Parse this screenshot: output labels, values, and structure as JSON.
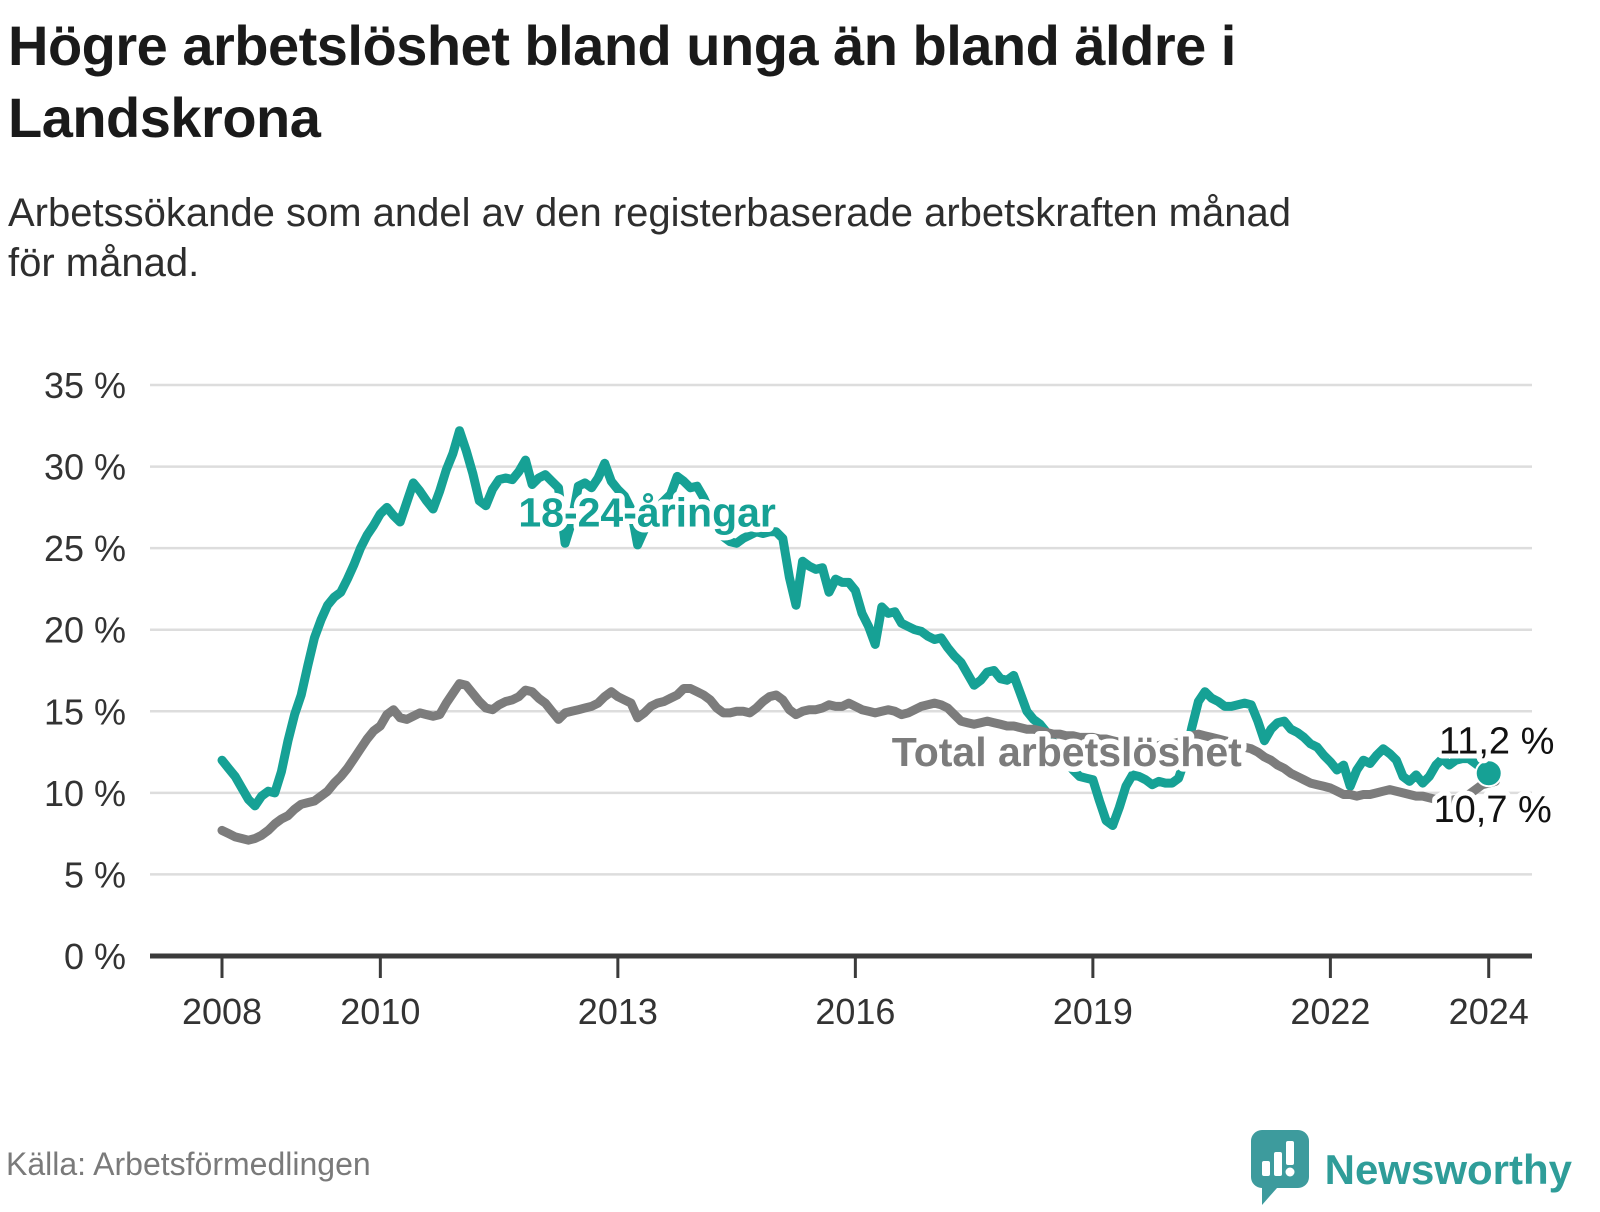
{
  "header": {
    "title": "Högre arbetslöshet bland unga än bland äldre i Landskrona",
    "title_lines": [
      "Högre arbetslöshet bland unga än bland äldre i",
      "Landskrona"
    ],
    "subtitle_lines": [
      "Arbetssökande som andel av den registerbaserade arbetskraften månad",
      "för månad."
    ]
  },
  "footer": {
    "source": "Källa: Arbetsförmedlingen",
    "brand_name": "Newsworthy"
  },
  "colors": {
    "young": "#16A195",
    "total": "#7C7C7C",
    "grid": "#DDDDDD",
    "axis": "#3B3B3B",
    "brand": "#3D9B9D",
    "end_label_text": "#111111"
  },
  "chart_data": {
    "type": "line",
    "title": "Högre arbetslöshet bland unga än bland äldre i Landskrona",
    "xlabel": "",
    "ylabel": "",
    "x_start_year": 2008,
    "x_step_months": 1,
    "xticks": [
      2008,
      2010,
      2013,
      2016,
      2019,
      2022,
      2024
    ],
    "yticks": [
      0,
      5,
      10,
      15,
      20,
      25,
      30,
      35
    ],
    "ytick_suffix": " %",
    "ylim": [
      0,
      35
    ],
    "grid": true,
    "legend": "inline-labels",
    "series": [
      {
        "name": "18-24-åringar",
        "color": "#16A195",
        "end_label": "11,2 %",
        "end_value": 11.2,
        "end_dot": true,
        "label_anchor": {
          "year": 2013.37,
          "value": 27.2
        },
        "end_label_anchor": {
          "year": 2024.1,
          "value": 13.2
        },
        "values": [
          12.0,
          11.5,
          11.0,
          10.3,
          9.6,
          9.2,
          9.8,
          10.1,
          10.0,
          11.3,
          13.2,
          14.8,
          16.0,
          17.8,
          19.5,
          20.6,
          21.5,
          22.0,
          22.3,
          23.1,
          24.0,
          25.0,
          25.8,
          26.4,
          27.1,
          27.5,
          27.0,
          26.6,
          27.8,
          29.0,
          28.5,
          27.9,
          27.4,
          28.5,
          29.8,
          30.8,
          32.2,
          31.0,
          29.6,
          27.9,
          27.6,
          28.6,
          29.2,
          29.3,
          29.2,
          29.7,
          30.4,
          28.9,
          29.3,
          29.5,
          29.1,
          28.7,
          25.3,
          26.6,
          28.8,
          29.0,
          28.7,
          29.3,
          30.2,
          29.1,
          28.6,
          28.2,
          27.4,
          25.2,
          26.1,
          27.0,
          27.5,
          27.9,
          28.3,
          29.4,
          29.1,
          28.7,
          28.8,
          28.1,
          27.2,
          26.3,
          25.7,
          25.4,
          25.3,
          25.6,
          25.8,
          26.0,
          25.9,
          26.0,
          26.0,
          25.6,
          23.2,
          21.5,
          24.2,
          23.9,
          23.7,
          23.8,
          22.3,
          23.1,
          22.9,
          22.9,
          22.4,
          21.0,
          20.2,
          19.1,
          21.4,
          21.0,
          21.1,
          20.4,
          20.2,
          20.0,
          19.9,
          19.6,
          19.4,
          19.5,
          18.9,
          18.4,
          18.0,
          17.3,
          16.6,
          16.9,
          17.4,
          17.5,
          17.0,
          16.9,
          17.2,
          16.1,
          15.0,
          14.5,
          14.2,
          13.7,
          13.1,
          12.5,
          11.9,
          11.4,
          11.0,
          10.9,
          10.8,
          9.5,
          8.3,
          8.0,
          9.1,
          10.4,
          11.1,
          11.0,
          10.8,
          10.5,
          10.7,
          10.6,
          10.6,
          10.9,
          12.1,
          14.0,
          15.6,
          16.2,
          15.8,
          15.6,
          15.3,
          15.3,
          15.4,
          15.5,
          15.4,
          14.4,
          13.2,
          13.9,
          14.3,
          14.4,
          13.9,
          13.7,
          13.4,
          13.0,
          12.8,
          12.3,
          11.9,
          11.4,
          11.7,
          10.4,
          11.4,
          12.0,
          11.8,
          12.3,
          12.7,
          12.4,
          12.0,
          11.0,
          10.7,
          11.1,
          10.6,
          11.0,
          11.7,
          12.1,
          11.7,
          12.0,
          12.1,
          12.1,
          11.8,
          11.5,
          11.2
        ]
      },
      {
        "name": "Total arbetslöshet",
        "color": "#7C7C7C",
        "end_label": "10,7 %",
        "end_value": 10.7,
        "end_dot": false,
        "label_anchor": {
          "year": 2018.67,
          "value": 12.5
        },
        "end_label_anchor": {
          "year": 2024.05,
          "value": 9.0
        },
        "values": [
          7.7,
          7.5,
          7.3,
          7.2,
          7.1,
          7.2,
          7.4,
          7.7,
          8.1,
          8.4,
          8.6,
          9.0,
          9.3,
          9.4,
          9.5,
          9.8,
          10.1,
          10.6,
          11.0,
          11.5,
          12.1,
          12.7,
          13.3,
          13.8,
          14.1,
          14.8,
          15.1,
          14.6,
          14.5,
          14.7,
          14.9,
          14.8,
          14.7,
          14.8,
          15.5,
          16.1,
          16.7,
          16.6,
          16.1,
          15.6,
          15.2,
          15.1,
          15.4,
          15.6,
          15.7,
          15.9,
          16.3,
          16.2,
          15.8,
          15.5,
          15.0,
          14.5,
          14.9,
          15.0,
          15.1,
          15.2,
          15.3,
          15.5,
          15.9,
          16.2,
          15.9,
          15.7,
          15.5,
          14.6,
          14.9,
          15.3,
          15.5,
          15.6,
          15.8,
          16.0,
          16.4,
          16.4,
          16.2,
          16.0,
          15.7,
          15.2,
          14.9,
          14.9,
          15.0,
          15.0,
          14.9,
          15.2,
          15.6,
          15.9,
          16.0,
          15.7,
          15.1,
          14.8,
          15.0,
          15.1,
          15.1,
          15.2,
          15.4,
          15.3,
          15.3,
          15.5,
          15.3,
          15.1,
          15.0,
          14.9,
          15.0,
          15.1,
          15.0,
          14.8,
          14.9,
          15.1,
          15.3,
          15.4,
          15.5,
          15.4,
          15.2,
          14.8,
          14.4,
          14.3,
          14.2,
          14.3,
          14.4,
          14.3,
          14.2,
          14.1,
          14.1,
          14.0,
          13.9,
          13.9,
          13.8,
          13.7,
          13.6,
          13.6,
          13.5,
          13.5,
          13.4,
          13.4,
          13.4,
          13.3,
          13.3,
          13.2,
          13.1,
          13.0,
          12.9,
          12.9,
          12.8,
          12.8,
          12.9,
          13.0,
          13.0,
          13.1,
          13.3,
          13.5,
          13.6,
          13.5,
          13.4,
          13.3,
          13.2,
          13.1,
          13.0,
          12.8,
          12.7,
          12.5,
          12.2,
          12.0,
          11.7,
          11.5,
          11.2,
          11.0,
          10.8,
          10.6,
          10.5,
          10.4,
          10.3,
          10.1,
          9.9,
          9.9,
          9.8,
          9.9,
          9.9,
          10.0,
          10.1,
          10.2,
          10.1,
          10.0,
          9.9,
          9.8,
          9.8,
          9.7,
          9.6,
          9.5,
          9.5,
          9.6,
          9.7,
          9.9,
          10.2,
          10.5,
          10.6,
          10.7
        ]
      }
    ]
  }
}
